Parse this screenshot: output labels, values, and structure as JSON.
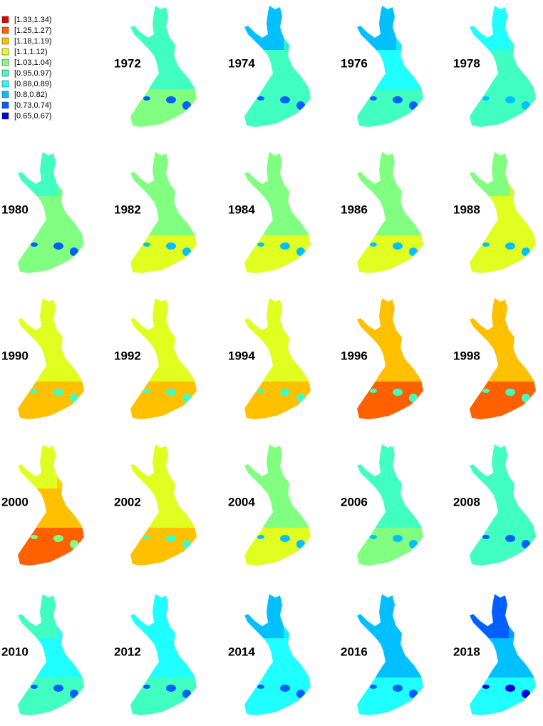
{
  "legend": [
    {
      "label": "[1.33,1.34)",
      "color": "#e00000"
    },
    {
      "label": "[1.25,1.27)",
      "color": "#ff6000"
    },
    {
      "label": "[1.18,1.19)",
      "color": "#ffc000"
    },
    {
      "label": "[1.1,1.12)",
      "color": "#e0ff20"
    },
    {
      "label": "[1.03,1.04)",
      "color": "#80ff80"
    },
    {
      "label": "[0.95,0.97)",
      "color": "#40ffc0"
    },
    {
      "label": "[0.88,0.89)",
      "color": "#20ffff"
    },
    {
      "label": "[0.8,0.82)",
      "color": "#00c0ff"
    },
    {
      "label": "[0.73,0.74)",
      "color": "#0060ff"
    },
    {
      "label": "[0.65,0.67)",
      "color": "#0000e0"
    }
  ],
  "maps": [
    {
      "year": "1972",
      "colors": [
        "#40ffc0",
        "#40ffc0",
        "#80ff80",
        "#0060ff"
      ]
    },
    {
      "year": "1974",
      "colors": [
        "#00c0ff",
        "#40ffc0",
        "#40ffc0",
        "#0060ff"
      ]
    },
    {
      "year": "1976",
      "colors": [
        "#00c0ff",
        "#20ffff",
        "#40ffc0",
        "#0060ff"
      ]
    },
    {
      "year": "1978",
      "colors": [
        "#20ffff",
        "#40ffc0",
        "#40ffc0",
        "#00c0ff"
      ]
    },
    {
      "year": "1980",
      "colors": [
        "#40ffc0",
        "#80ff80",
        "#80ff80",
        "#0060ff"
      ]
    },
    {
      "year": "1982",
      "colors": [
        "#80ff80",
        "#80ff80",
        "#e0ff20",
        "#00c0ff"
      ]
    },
    {
      "year": "1984",
      "colors": [
        "#80ff80",
        "#80ff80",
        "#e0ff20",
        "#00c0ff"
      ]
    },
    {
      "year": "1986",
      "colors": [
        "#80ff80",
        "#80ff80",
        "#e0ff20",
        "#00c0ff"
      ]
    },
    {
      "year": "1988",
      "colors": [
        "#80ff80",
        "#e0ff20",
        "#e0ff20",
        "#00c0ff"
      ]
    },
    {
      "year": "1990",
      "colors": [
        "#e0ff20",
        "#e0ff20",
        "#ffc000",
        "#40ffc0"
      ]
    },
    {
      "year": "1992",
      "colors": [
        "#e0ff20",
        "#e0ff20",
        "#ffc000",
        "#40ffc0"
      ]
    },
    {
      "year": "1994",
      "colors": [
        "#e0ff20",
        "#e0ff20",
        "#ffc000",
        "#40ffc0"
      ]
    },
    {
      "year": "1996",
      "colors": [
        "#ffc000",
        "#ffc000",
        "#ff6000",
        "#40ffc0"
      ]
    },
    {
      "year": "1998",
      "colors": [
        "#ffc000",
        "#ffc000",
        "#ff6000",
        "#40ffc0"
      ]
    },
    {
      "year": "2000",
      "colors": [
        "#e0ff20",
        "#ffc000",
        "#ff6000",
        "#80ff80"
      ]
    },
    {
      "year": "2002",
      "colors": [
        "#e0ff20",
        "#e0ff20",
        "#ffc000",
        "#40ffc0"
      ]
    },
    {
      "year": "2004",
      "colors": [
        "#80ff80",
        "#80ff80",
        "#e0ff20",
        "#00c0ff"
      ]
    },
    {
      "year": "2006",
      "colors": [
        "#40ffc0",
        "#40ffc0",
        "#80ff80",
        "#00c0ff"
      ]
    },
    {
      "year": "2008",
      "colors": [
        "#40ffc0",
        "#40ffc0",
        "#40ffc0",
        "#0060ff"
      ]
    },
    {
      "year": "2010",
      "colors": [
        "#40ffc0",
        "#20ffff",
        "#40ffc0",
        "#0060ff"
      ]
    },
    {
      "year": "2012",
      "colors": [
        "#20ffff",
        "#20ffff",
        "#40ffc0",
        "#0060ff"
      ]
    },
    {
      "year": "2014",
      "colors": [
        "#00c0ff",
        "#20ffff",
        "#20ffff",
        "#0060ff"
      ]
    },
    {
      "year": "2016",
      "colors": [
        "#00c0ff",
        "#00c0ff",
        "#20ffff",
        "#0060ff"
      ]
    },
    {
      "year": "2018",
      "colors": [
        "#0060ff",
        "#00c0ff",
        "#20ffff",
        "#0000e0"
      ]
    }
  ]
}
